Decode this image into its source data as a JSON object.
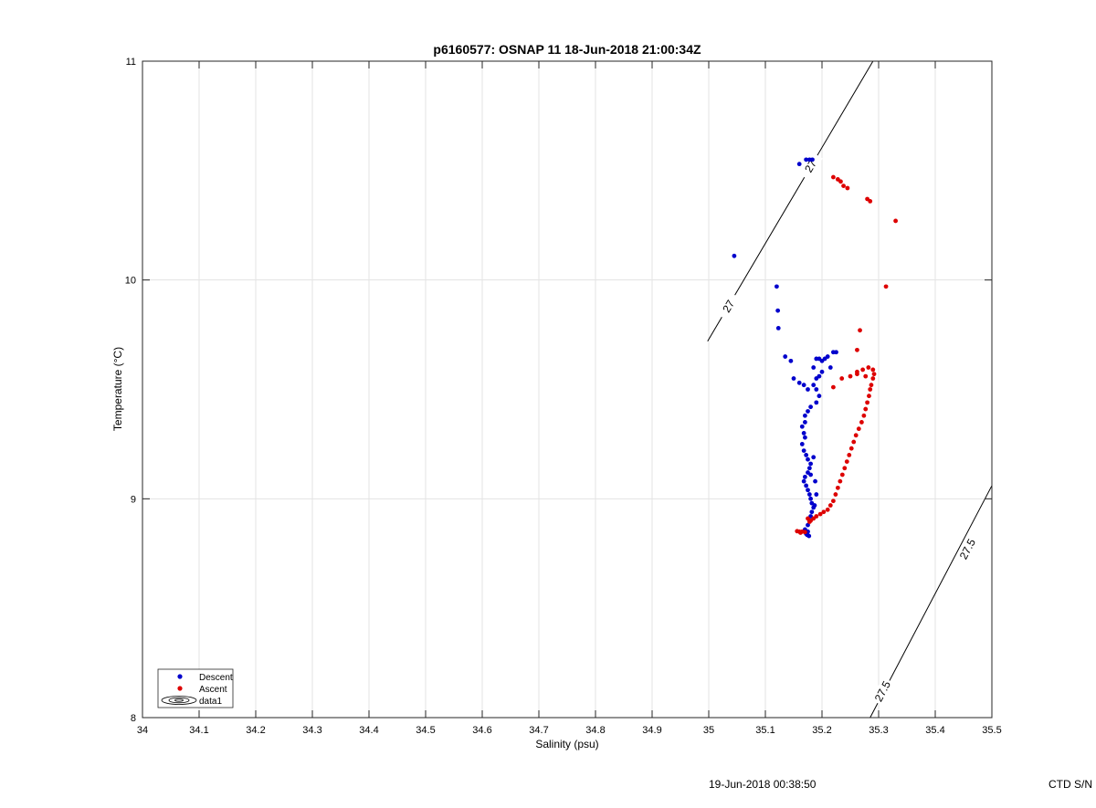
{
  "chart_data": {
    "type": "scatter",
    "title": "p6160577: OSNAP 11 18-Jun-2018 21:00:34Z",
    "xlabel": "Salinity (psu)",
    "ylabel": "Temperature (°C)",
    "xlim": [
      34,
      35.5
    ],
    "ylim": [
      8,
      11
    ],
    "xticks": [
      "34",
      "34.1",
      "34.2",
      "34.3",
      "34.4",
      "34.5",
      "34.6",
      "34.7",
      "34.8",
      "34.9",
      "35",
      "35.1",
      "35.2",
      "35.3",
      "35.4",
      "35.5"
    ],
    "yticks": [
      "8",
      "9",
      "10",
      "11"
    ],
    "grid": true,
    "legend_position": "bottom-left",
    "series": [
      {
        "name": "Descent",
        "color": "#0000cc",
        "points": [
          [
            35.045,
            10.11
          ],
          [
            35.16,
            10.53
          ],
          [
            35.172,
            10.55
          ],
          [
            35.178,
            10.55
          ],
          [
            35.183,
            10.55
          ],
          [
            35.12,
            9.97
          ],
          [
            35.122,
            9.86
          ],
          [
            35.123,
            9.78
          ],
          [
            35.135,
            9.65
          ],
          [
            35.145,
            9.63
          ],
          [
            35.15,
            9.55
          ],
          [
            35.16,
            9.53
          ],
          [
            35.168,
            9.52
          ],
          [
            35.175,
            9.5
          ],
          [
            35.185,
            9.6
          ],
          [
            35.19,
            9.64
          ],
          [
            35.195,
            9.64
          ],
          [
            35.2,
            9.63
          ],
          [
            35.205,
            9.64
          ],
          [
            35.21,
            9.65
          ],
          [
            35.22,
            9.67
          ],
          [
            35.225,
            9.67
          ],
          [
            35.215,
            9.6
          ],
          [
            35.2,
            9.58
          ],
          [
            35.195,
            9.56
          ],
          [
            35.19,
            9.55
          ],
          [
            35.185,
            9.52
          ],
          [
            35.19,
            9.5
          ],
          [
            35.195,
            9.47
          ],
          [
            35.19,
            9.44
          ],
          [
            35.18,
            9.42
          ],
          [
            35.175,
            9.4
          ],
          [
            35.17,
            9.38
          ],
          [
            35.17,
            9.35
          ],
          [
            35.165,
            9.33
          ],
          [
            35.168,
            9.3
          ],
          [
            35.17,
            9.28
          ],
          [
            35.165,
            9.25
          ],
          [
            35.168,
            9.22
          ],
          [
            35.172,
            9.2
          ],
          [
            35.175,
            9.18
          ],
          [
            35.18,
            9.16
          ],
          [
            35.178,
            9.14
          ],
          [
            35.175,
            9.12
          ],
          [
            35.17,
            9.1
          ],
          [
            35.168,
            9.08
          ],
          [
            35.172,
            9.06
          ],
          [
            35.175,
            9.04
          ],
          [
            35.178,
            9.02
          ],
          [
            35.18,
            9.0
          ],
          [
            35.182,
            8.98
          ],
          [
            35.185,
            8.96
          ],
          [
            35.182,
            8.94
          ],
          [
            35.18,
            8.92
          ],
          [
            35.178,
            8.9
          ],
          [
            35.175,
            8.88
          ],
          [
            35.17,
            8.86
          ],
          [
            35.175,
            8.85
          ],
          [
            35.172,
            8.84
          ],
          [
            35.177,
            8.83
          ],
          [
            35.174,
            8.835
          ],
          [
            35.18,
            9.11
          ],
          [
            35.185,
            9.19
          ],
          [
            35.188,
            9.08
          ],
          [
            35.19,
            9.02
          ],
          [
            35.187,
            8.97
          ]
        ]
      },
      {
        "name": "Ascent",
        "color": "#dd0000",
        "points": [
          [
            35.22,
            10.47
          ],
          [
            35.228,
            10.46
          ],
          [
            35.233,
            10.45
          ],
          [
            35.238,
            10.43
          ],
          [
            35.245,
            10.42
          ],
          [
            35.28,
            10.37
          ],
          [
            35.285,
            10.36
          ],
          [
            35.33,
            10.27
          ],
          [
            35.313,
            9.97
          ],
          [
            35.267,
            9.77
          ],
          [
            35.262,
            9.68
          ],
          [
            35.22,
            9.51
          ],
          [
            35.235,
            9.55
          ],
          [
            35.25,
            9.56
          ],
          [
            35.262,
            9.58
          ],
          [
            35.272,
            9.59
          ],
          [
            35.282,
            9.6
          ],
          [
            35.29,
            9.59
          ],
          [
            35.292,
            9.57
          ],
          [
            35.29,
            9.55
          ],
          [
            35.287,
            9.52
          ],
          [
            35.285,
            9.5
          ],
          [
            35.283,
            9.47
          ],
          [
            35.28,
            9.44
          ],
          [
            35.277,
            9.41
          ],
          [
            35.274,
            9.38
          ],
          [
            35.27,
            9.35
          ],
          [
            35.265,
            9.32
          ],
          [
            35.26,
            9.29
          ],
          [
            35.256,
            9.26
          ],
          [
            35.252,
            9.23
          ],
          [
            35.248,
            9.2
          ],
          [
            35.244,
            9.17
          ],
          [
            35.24,
            9.14
          ],
          [
            35.236,
            9.11
          ],
          [
            35.232,
            9.08
          ],
          [
            35.228,
            9.05
          ],
          [
            35.224,
            9.02
          ],
          [
            35.22,
            8.99
          ],
          [
            35.215,
            8.97
          ],
          [
            35.21,
            8.95
          ],
          [
            35.203,
            8.94
          ],
          [
            35.197,
            8.93
          ],
          [
            35.19,
            8.92
          ],
          [
            35.185,
            8.91
          ],
          [
            35.18,
            8.9
          ],
          [
            35.178,
            8.895
          ],
          [
            35.175,
            8.91
          ],
          [
            35.16,
            8.85
          ],
          [
            35.165,
            8.85
          ],
          [
            35.17,
            8.848
          ],
          [
            35.156,
            8.852
          ],
          [
            35.162,
            8.845
          ],
          [
            35.277,
            9.56
          ],
          [
            35.262,
            9.57
          ]
        ]
      },
      {
        "name": "data1",
        "type": "contour",
        "levels": [
          {
            "label": "27",
            "line": [
              [
                34.998,
                9.72
              ],
              [
                35.29,
                11.0
              ]
            ],
            "label_positions": [
              [
                35.035,
                9.88
              ],
              [
                35.18,
                10.52
              ]
            ]
          },
          {
            "label": "27.5",
            "line": [
              [
                35.285,
                8.0
              ],
              [
                35.5,
                9.06
              ]
            ],
            "label_positions": [
              [
                35.307,
                8.12
              ],
              [
                35.457,
                8.77
              ]
            ]
          }
        ]
      }
    ]
  },
  "footer": {
    "timestamp": "19-Jun-2018 00:38:50",
    "serial": "CTD S/N"
  }
}
